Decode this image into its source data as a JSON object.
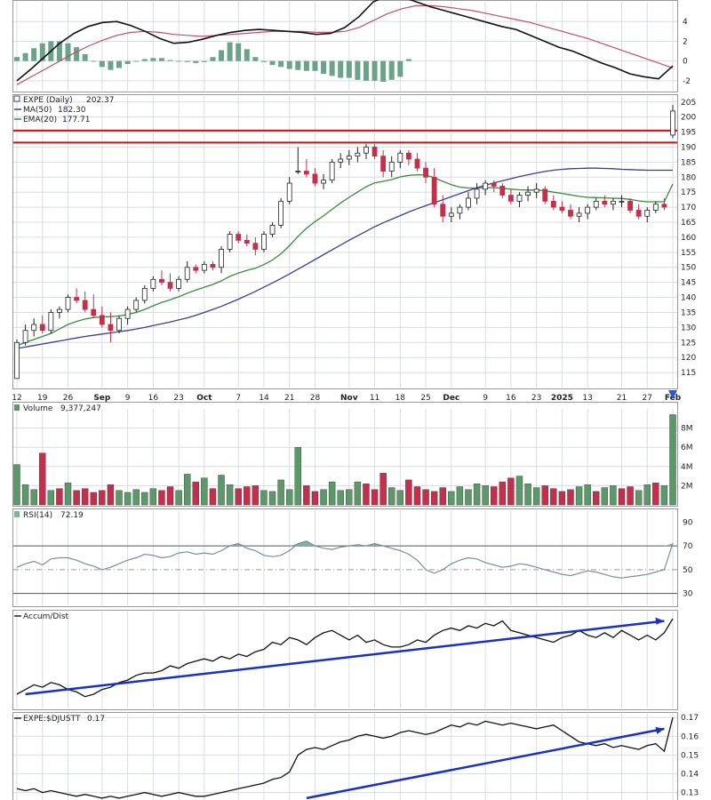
{
  "colors": {
    "up": "#5b9a68",
    "down": "#c2304b",
    "price_up_fill": "#ffffff",
    "ma50": "#3b3f8c",
    "ema20": "#3a8a3a",
    "resistance": "#cc1111",
    "trend": "#1a2fc4",
    "rsi_fill": "#7fb39a",
    "macd_hist": "#6aa38a",
    "signal": "#c0506a",
    "grid": "#d8dde3",
    "marker": "#2b55d6"
  },
  "panels": {
    "price": {
      "symbol": "EXPE (Daily)",
      "last": "202.37",
      "ma50_label": "MA(50)",
      "ma50_value": "182.30",
      "ema20_label": "EMA(20)",
      "ema20_value": "177.71"
    },
    "volume": {
      "label": "Volume",
      "value": "9,377,247"
    },
    "rsi": {
      "label": "RSI(14)",
      "value": "72.19"
    },
    "accum": {
      "label": "Accum/Dist"
    },
    "ratio": {
      "label": "EXPE:$DJUSTT",
      "value": "0.17"
    }
  },
  "x_axis": {
    "ticks": [
      "12",
      "19",
      "26",
      "Sep",
      "9",
      "16",
      "23",
      "Oct",
      "7",
      "14",
      "21",
      "28",
      "Nov",
      "11",
      "18",
      "25",
      "Dec",
      "9",
      "16",
      "23",
      "2025",
      "13",
      "21",
      "27",
      "Feb"
    ],
    "bold": [
      "Sep",
      "Oct",
      "Nov",
      "Dec",
      "2025",
      "Feb"
    ]
  },
  "chart_data": [
    {
      "type": "line",
      "panel": "macd",
      "yticks": [
        4,
        2,
        0,
        -2
      ],
      "ylim": [
        -3,
        6
      ],
      "series": [
        {
          "values": [
            -2.0,
            -0.8,
            0.5,
            1.8,
            2.8,
            3.5,
            3.9,
            4.0,
            3.6,
            3.0,
            2.3,
            1.8,
            1.9,
            2.2,
            2.6,
            2.9,
            3.1,
            3.2,
            3.1,
            3.0,
            2.9,
            2.7,
            2.8,
            3.4,
            4.5,
            6.0,
            6.6,
            6.5,
            6.0,
            5.5,
            5.1,
            4.7,
            4.3,
            3.9,
            3.5,
            3.2,
            2.6,
            2.0,
            1.4,
            1.0,
            0.4,
            -0.2,
            -0.7,
            -1.3,
            -1.6,
            -1.8,
            -0.5
          ]
        },
        {
          "values": [
            -2.4,
            -1.6,
            -0.8,
            0.0,
            0.8,
            1.5,
            2.1,
            2.6,
            2.9,
            3.0,
            2.9,
            2.7,
            2.6,
            2.5,
            2.6,
            2.7,
            2.8,
            2.9,
            3.0,
            3.0,
            3.0,
            2.9,
            2.9,
            3.0,
            3.4,
            4.1,
            4.8,
            5.3,
            5.6,
            5.6,
            5.5,
            5.3,
            5.1,
            4.8,
            4.5,
            4.2,
            3.9,
            3.5,
            3.1,
            2.7,
            2.3,
            1.8,
            1.3,
            0.8,
            0.3,
            -0.2,
            -0.7
          ]
        }
      ],
      "histogram": [
        0.4,
        0.8,
        1.3,
        1.8,
        2.0,
        2.0,
        1.8,
        1.4,
        0.7,
        0.0,
        -0.6,
        -0.9,
        -0.7,
        -0.3,
        0.0,
        0.2,
        0.3,
        0.3,
        0.1,
        0.0,
        -0.1,
        -0.2,
        -0.1,
        0.4,
        1.1,
        1.9,
        1.8,
        1.2,
        0.4,
        -0.1,
        -0.4,
        -0.6,
        -0.8,
        -0.9,
        -1.0,
        -1.0,
        -1.3,
        -1.5,
        -1.7,
        -1.7,
        -1.9,
        -2.0,
        -2.0,
        -2.1,
        -1.9,
        -1.6,
        0.2
      ]
    },
    {
      "type": "candlestick",
      "panel": "price",
      "yticks": [
        115,
        120,
        125,
        130,
        135,
        140,
        145,
        150,
        155,
        160,
        165,
        170,
        175,
        180,
        185,
        190,
        195,
        200,
        205
      ],
      "ylim": [
        110,
        207
      ],
      "resistance": [
        191.5,
        195.5
      ],
      "ohlc": [
        [
          113,
          126,
          113,
          125
        ],
        [
          125,
          131,
          124,
          129
        ],
        [
          129,
          133,
          127,
          131
        ],
        [
          131,
          134,
          128,
          129
        ],
        [
          129,
          136,
          128,
          135
        ],
        [
          135,
          137,
          133,
          136
        ],
        [
          136,
          141,
          135,
          140
        ],
        [
          140,
          143,
          138,
          139
        ],
        [
          139,
          142,
          135,
          136
        ],
        [
          136,
          141,
          133,
          134
        ],
        [
          134,
          137,
          130,
          131
        ],
        [
          131,
          135,
          125,
          129
        ],
        [
          129,
          134,
          128,
          133
        ],
        [
          133,
          137,
          131,
          136
        ],
        [
          136,
          140,
          135,
          139
        ],
        [
          139,
          144,
          138,
          143
        ],
        [
          143,
          147,
          142,
          146
        ],
        [
          146,
          149,
          144,
          145
        ],
        [
          145,
          148,
          142,
          143
        ],
        [
          143,
          147,
          142,
          146
        ],
        [
          146,
          152,
          145,
          150
        ],
        [
          150,
          151,
          148,
          149
        ],
        [
          149,
          152,
          148,
          151
        ],
        [
          151,
          152,
          149,
          150
        ],
        [
          150,
          157,
          148,
          156
        ],
        [
          156,
          162,
          155,
          161
        ],
        [
          161,
          162,
          158,
          159
        ],
        [
          159,
          161,
          157,
          158
        ],
        [
          158,
          160,
          154,
          156
        ],
        [
          156,
          162,
          155,
          161
        ],
        [
          161,
          165,
          160,
          164
        ],
        [
          164,
          173,
          163,
          172
        ],
        [
          172,
          180,
          171,
          178
        ],
        [
          182,
          190,
          181,
          182
        ],
        [
          182,
          186,
          180,
          181
        ],
        [
          181,
          183,
          177,
          178
        ],
        [
          178,
          181,
          176,
          179
        ],
        [
          179,
          186,
          178,
          185
        ],
        [
          185,
          188,
          183,
          186
        ],
        [
          186,
          189,
          184,
          187
        ],
        [
          187,
          190,
          185,
          188
        ],
        [
          188,
          191,
          186,
          190
        ],
        [
          190,
          191,
          186,
          187
        ],
        [
          187,
          189,
          180,
          182
        ],
        [
          182,
          187,
          180,
          185
        ],
        [
          185,
          189,
          183,
          188
        ],
        [
          188,
          189,
          184,
          186
        ],
        [
          186,
          188,
          182,
          183
        ],
        [
          183,
          185,
          178,
          180
        ],
        [
          180,
          183,
          170,
          171
        ],
        [
          171,
          174,
          165,
          167
        ],
        [
          167,
          170,
          165,
          168
        ],
        [
          168,
          171,
          166,
          170
        ],
        [
          170,
          175,
          169,
          173
        ],
        [
          173,
          178,
          171,
          176
        ],
        [
          176,
          179,
          174,
          178
        ],
        [
          178,
          179,
          175,
          177
        ],
        [
          177,
          178,
          173,
          174
        ],
        [
          174,
          176,
          171,
          172
        ],
        [
          172,
          175,
          170,
          174
        ],
        [
          174,
          177,
          172,
          175
        ],
        [
          175,
          178,
          173,
          176
        ],
        [
          176,
          177,
          171,
          172
        ],
        [
          172,
          174,
          169,
          170
        ],
        [
          170,
          172,
          168,
          169
        ],
        [
          169,
          171,
          166,
          167
        ],
        [
          167,
          170,
          165,
          168
        ],
        [
          168,
          171,
          166,
          170
        ],
        [
          170,
          173,
          169,
          172
        ],
        [
          172,
          174,
          170,
          171
        ],
        [
          171,
          173,
          169,
          172
        ],
        [
          172,
          174,
          170,
          172
        ],
        [
          172,
          173,
          168,
          169
        ],
        [
          169,
          171,
          166,
          167
        ],
        [
          167,
          170,
          165,
          169
        ],
        [
          169,
          172,
          168,
          171
        ],
        [
          171,
          173,
          169,
          170
        ],
        [
          194,
          204,
          193,
          202
        ]
      ],
      "series": [
        {
          "name": "MA(50)",
          "values": [
            123,
            123.5,
            124,
            124.5,
            125,
            125.5,
            126,
            126.5,
            127,
            127.4,
            127.8,
            128.2,
            128.6,
            129,
            129.5,
            130,
            130.6,
            131.2,
            131.8,
            132.5,
            133.2,
            134,
            135,
            136,
            137,
            138.2,
            139.4,
            140.7,
            142,
            143.4,
            144.8,
            146.3,
            147.8,
            149.4,
            151,
            152.6,
            154.2,
            155.8,
            157.4,
            159,
            160.5,
            162,
            163.5,
            164.8,
            166,
            167.2,
            168.4,
            169.5,
            170.5,
            171.5,
            172.5,
            173.5,
            174.5,
            175.5,
            176.5,
            177.3,
            178.1,
            178.8,
            179.5,
            180.2,
            180.8,
            181.4,
            181.9,
            182.3,
            182.6,
            182.8,
            182.9,
            183.0,
            183.0,
            182.9,
            182.8,
            182.6,
            182.5,
            182.4,
            182.3,
            182.3,
            182.3,
            182.3
          ]
        },
        {
          "name": "EMA(20)",
          "values": [
            124,
            125,
            126,
            127,
            128,
            129.5,
            131,
            132,
            132.8,
            133.3,
            133.5,
            133.6,
            133.8,
            134.3,
            135,
            136,
            137.2,
            138.3,
            139.2,
            140.2,
            141.4,
            142.4,
            143.4,
            144.3,
            145.5,
            147,
            148.1,
            149,
            149.7,
            150.9,
            152.4,
            154.5,
            157.2,
            160.3,
            163,
            165.2,
            167.1,
            169.3,
            171.4,
            173.3,
            175.1,
            176.8,
            178.1,
            178.6,
            179.2,
            180.1,
            180.6,
            180.8,
            180.7,
            179.8,
            178.6,
            177.5,
            176.7,
            176.4,
            176.4,
            176.5,
            176.5,
            176.3,
            176.0,
            175.8,
            175.7,
            175.7,
            175.5,
            175.0,
            174.6,
            174.1,
            173.6,
            173.3,
            173.2,
            173.1,
            173.0,
            172.9,
            172.6,
            172.1,
            171.8,
            171.8,
            171.8,
            177.7
          ]
        }
      ]
    },
    {
      "type": "bar",
      "panel": "volume",
      "yticks": [
        "8M",
        "6M",
        "4M",
        "2M"
      ],
      "ylim": [
        0,
        10
      ],
      "values": [
        4.2,
        2.1,
        1.6,
        5.4,
        1.5,
        1.7,
        2.3,
        1.5,
        1.7,
        1.3,
        1.5,
        2.1,
        1.5,
        1.3,
        1.6,
        1.3,
        1.7,
        1.5,
        1.9,
        1.5,
        3.2,
        2.4,
        2.8,
        1.7,
        3.1,
        2.1,
        1.7,
        1.9,
        2.0,
        1.5,
        1.4,
        2.6,
        1.6,
        6.0,
        2.0,
        1.4,
        1.6,
        2.4,
        1.5,
        1.6,
        2.4,
        2.2,
        1.6,
        3.3,
        1.8,
        1.5,
        2.6,
        1.9,
        1.6,
        1.4,
        1.8,
        1.4,
        1.9,
        1.6,
        2.2,
        2.0,
        1.9,
        2.4,
        2.8,
        3.0,
        2.2,
        1.8,
        2.0,
        1.7,
        1.4,
        1.6,
        1.9,
        2.1,
        1.4,
        1.8,
        2.0,
        1.7,
        1.9,
        1.5,
        2.1,
        2.3,
        2.0,
        9.4
      ],
      "up": [
        true,
        true,
        true,
        false,
        true,
        false,
        true,
        false,
        false,
        false,
        false,
        false,
        true,
        true,
        true,
        true,
        true,
        false,
        false,
        true,
        true,
        false,
        true,
        false,
        true,
        true,
        false,
        false,
        false,
        true,
        true,
        true,
        true,
        true,
        false,
        false,
        true,
        true,
        true,
        true,
        true,
        false,
        false,
        false,
        true,
        true,
        false,
        false,
        false,
        false,
        false,
        true,
        true,
        true,
        true,
        true,
        false,
        false,
        false,
        true,
        true,
        true,
        false,
        false,
        false,
        false,
        true,
        true,
        false,
        true,
        true,
        false,
        false,
        true,
        true,
        false,
        true,
        true
      ]
    },
    {
      "type": "line",
      "panel": "rsi",
      "yticks": [
        90,
        70,
        50,
        30
      ],
      "ylim": [
        20,
        100
      ],
      "bands": [
        30,
        50,
        70
      ],
      "values": [
        52,
        55,
        57,
        54,
        59,
        60,
        60,
        58,
        55,
        53,
        50,
        52,
        55,
        58,
        60,
        63,
        62,
        60,
        61,
        64,
        65,
        63,
        64,
        63,
        66,
        70,
        72,
        68,
        66,
        62,
        61,
        62,
        66,
        72,
        74,
        70,
        68,
        67,
        69,
        70,
        71,
        70,
        72,
        70,
        68,
        66,
        63,
        58,
        50,
        47,
        50,
        55,
        58,
        60,
        59,
        56,
        54,
        52,
        53,
        55,
        54,
        52,
        50,
        48,
        46,
        45,
        47,
        49,
        48,
        46,
        44,
        43,
        44,
        45,
        46,
        48,
        50,
        72.19
      ]
    },
    {
      "type": "line",
      "panel": "accum",
      "values": [
        12,
        16,
        20,
        18,
        22,
        20,
        16,
        14,
        10,
        12,
        16,
        18,
        22,
        24,
        28,
        30,
        30,
        32,
        36,
        34,
        38,
        40,
        42,
        40,
        44,
        42,
        46,
        44,
        48,
        50,
        56,
        54,
        60,
        58,
        54,
        60,
        64,
        66,
        62,
        58,
        62,
        56,
        58,
        54,
        52,
        52,
        54,
        58,
        56,
        62,
        66,
        68,
        66,
        70,
        68,
        72,
        70,
        74,
        66,
        64,
        62,
        60,
        58,
        56,
        60,
        62,
        66,
        62,
        60,
        64,
        60,
        66,
        62,
        58,
        62,
        58,
        64,
        76
      ],
      "trend": {
        "from": [
          1,
          12
        ],
        "to": [
          76,
          74
        ]
      }
    },
    {
      "type": "line",
      "panel": "ratio",
      "yticks": [
        0.17,
        0.16,
        0.15,
        0.14,
        0.13
      ],
      "ylim": [
        0.126,
        0.172
      ],
      "values": [
        0.132,
        0.131,
        0.132,
        0.13,
        0.131,
        0.13,
        0.129,
        0.128,
        0.129,
        0.128,
        0.127,
        0.128,
        0.127,
        0.128,
        0.129,
        0.13,
        0.129,
        0.128,
        0.129,
        0.13,
        0.129,
        0.128,
        0.128,
        0.129,
        0.13,
        0.131,
        0.132,
        0.133,
        0.134,
        0.135,
        0.137,
        0.138,
        0.141,
        0.15,
        0.153,
        0.154,
        0.153,
        0.155,
        0.157,
        0.158,
        0.16,
        0.161,
        0.16,
        0.159,
        0.16,
        0.162,
        0.163,
        0.162,
        0.161,
        0.162,
        0.164,
        0.166,
        0.165,
        0.167,
        0.166,
        0.168,
        0.167,
        0.166,
        0.167,
        0.166,
        0.165,
        0.164,
        0.165,
        0.166,
        0.163,
        0.16,
        0.157,
        0.156,
        0.155,
        0.156,
        0.154,
        0.155,
        0.154,
        0.153,
        0.155,
        0.156,
        0.152,
        0.17
      ],
      "trend": {
        "from": [
          34,
          0.127
        ],
        "to": [
          76,
          0.164
        ]
      }
    }
  ]
}
